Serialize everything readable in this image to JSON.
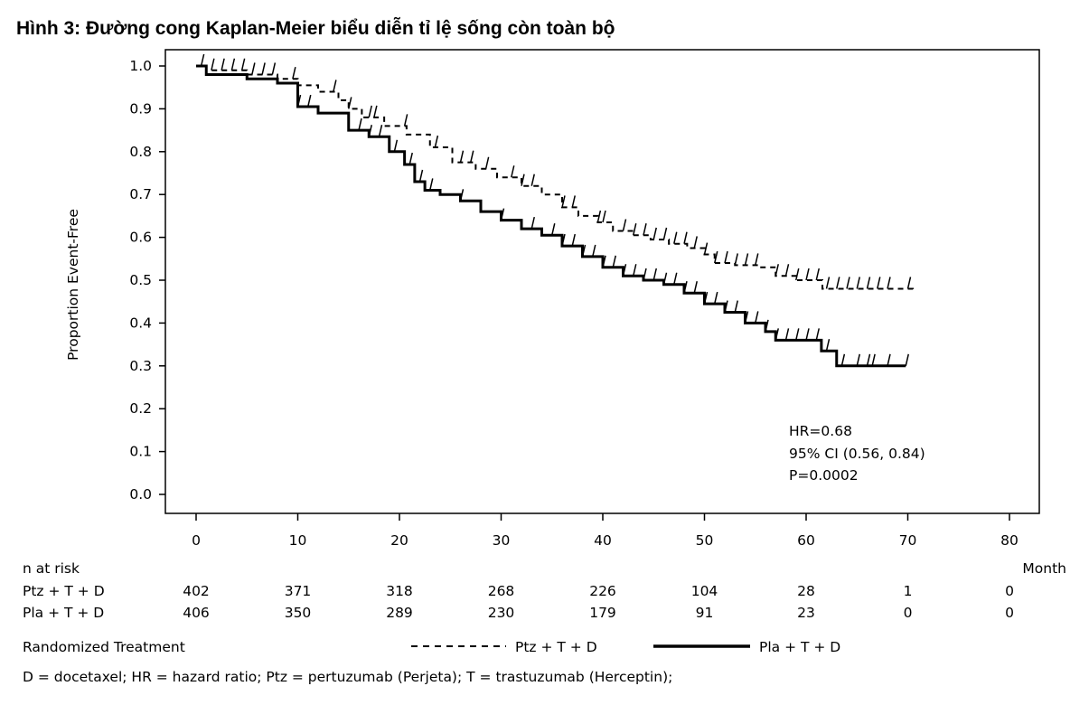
{
  "chart_data": {
    "type": "line",
    "title": "Hình 3: Đường cong Kaplan-Meier biểu diễn tỉ lệ sống còn toàn bộ",
    "xlabel": "Month",
    "ylabel": "Proportion Event-Free",
    "xlim": [
      0,
      80
    ],
    "ylim": [
      0,
      1
    ],
    "xticks": [
      "0",
      "10",
      "20",
      "30",
      "40",
      "50",
      "60",
      "70",
      "80"
    ],
    "yticks": [
      "0.0",
      "0.1",
      "0.2",
      "0.3",
      "0.4",
      "0.5",
      "0.6",
      "0.7",
      "0.8",
      "0.9",
      "1.0"
    ],
    "grid": false,
    "series": [
      {
        "name": "Ptz + T + D",
        "style": "dashed",
        "color": "#000000",
        "points": [
          [
            0,
            1.0
          ],
          [
            1,
            0.99
          ],
          [
            5,
            0.98
          ],
          [
            8,
            0.97
          ],
          [
            10,
            0.955
          ],
          [
            12,
            0.94
          ],
          [
            14,
            0.92
          ],
          [
            15,
            0.9
          ],
          [
            16.3,
            0.88
          ],
          [
            18.5,
            0.86
          ],
          [
            20.7,
            0.84
          ],
          [
            23,
            0.81
          ],
          [
            25.2,
            0.775
          ],
          [
            27.5,
            0.76
          ],
          [
            29.6,
            0.74
          ],
          [
            32,
            0.72
          ],
          [
            34,
            0.7
          ],
          [
            36,
            0.67
          ],
          [
            37.6,
            0.65
          ],
          [
            39.5,
            0.635
          ],
          [
            41,
            0.615
          ],
          [
            43,
            0.605
          ],
          [
            44.7,
            0.595
          ],
          [
            46.5,
            0.585
          ],
          [
            48.3,
            0.575
          ],
          [
            50,
            0.56
          ],
          [
            51,
            0.54
          ],
          [
            53,
            0.535
          ],
          [
            55.4,
            0.53
          ],
          [
            57,
            0.51
          ],
          [
            59,
            0.5
          ],
          [
            61.6,
            0.48
          ],
          [
            70.5,
            0.475
          ]
        ],
        "censored": [
          0.5,
          1.5,
          2.5,
          3.5,
          4.5,
          5.5,
          6.5,
          7.5,
          9.5,
          13.5,
          15,
          17,
          17.5,
          20.5,
          23.5,
          26,
          27,
          28.5,
          31,
          32,
          33,
          36,
          37,
          39.5,
          40,
          42,
          43,
          44,
          45,
          46,
          47,
          48,
          49,
          50,
          51,
          52,
          53,
          54,
          55,
          57,
          58,
          59,
          60,
          61,
          62,
          63,
          64,
          65,
          66,
          67,
          68,
          70
        ]
      },
      {
        "name": "Pla + T + D",
        "style": "solid",
        "color": "#000000",
        "points": [
          [
            0,
            1.0
          ],
          [
            1,
            0.98
          ],
          [
            5,
            0.97
          ],
          [
            8,
            0.96
          ],
          [
            10,
            0.905
          ],
          [
            12,
            0.89
          ],
          [
            15,
            0.85
          ],
          [
            17,
            0.835
          ],
          [
            19,
            0.8
          ],
          [
            20.5,
            0.77
          ],
          [
            21.5,
            0.73
          ],
          [
            22.5,
            0.71
          ],
          [
            24,
            0.7
          ],
          [
            26,
            0.685
          ],
          [
            28,
            0.66
          ],
          [
            30,
            0.64
          ],
          [
            32,
            0.62
          ],
          [
            34,
            0.605
          ],
          [
            36,
            0.58
          ],
          [
            38,
            0.555
          ],
          [
            40,
            0.53
          ],
          [
            42,
            0.51
          ],
          [
            44,
            0.5
          ],
          [
            46,
            0.49
          ],
          [
            48,
            0.47
          ],
          [
            50,
            0.445
          ],
          [
            52,
            0.425
          ],
          [
            54,
            0.4
          ],
          [
            56,
            0.38
          ],
          [
            57,
            0.36
          ],
          [
            61.3,
            0.36
          ],
          [
            61.5,
            0.335
          ],
          [
            63,
            0.3
          ],
          [
            69.8,
            0.3
          ]
        ],
        "censored": [
          10,
          11,
          16,
          17,
          18,
          19.5,
          21,
          22,
          23,
          26,
          30,
          33,
          35,
          36,
          37,
          38,
          39,
          40,
          41,
          42,
          43,
          44,
          45,
          46,
          47,
          48,
          49,
          50,
          51,
          52,
          53,
          54,
          55,
          56,
          57,
          58,
          59,
          60,
          61,
          62,
          63.5,
          65,
          66,
          66.5,
          68,
          69.8
        ]
      }
    ],
    "annotations": [
      "HR=0.68",
      "95% CI (0.56, 0.84)",
      "P=0.0002"
    ],
    "legend": {
      "placement": "bottom",
      "label": "Randomized Treatment"
    }
  },
  "risk_table": {
    "header": "n at risk",
    "unit": "Month",
    "rows": [
      {
        "label": "Ptz + T + D",
        "values": [
          "402",
          "371",
          "318",
          "268",
          "226",
          "104",
          "28",
          "1",
          "0"
        ]
      },
      {
        "label": "Pla + T + D",
        "values": [
          "406",
          "350",
          "289",
          "230",
          "179",
          "91",
          "23",
          "0",
          "0"
        ]
      }
    ]
  },
  "footnote": "D = docetaxel; HR = hazard ratio; Ptz = pertuzumab (Perjeta); T = trastuzumab (Herceptin);"
}
